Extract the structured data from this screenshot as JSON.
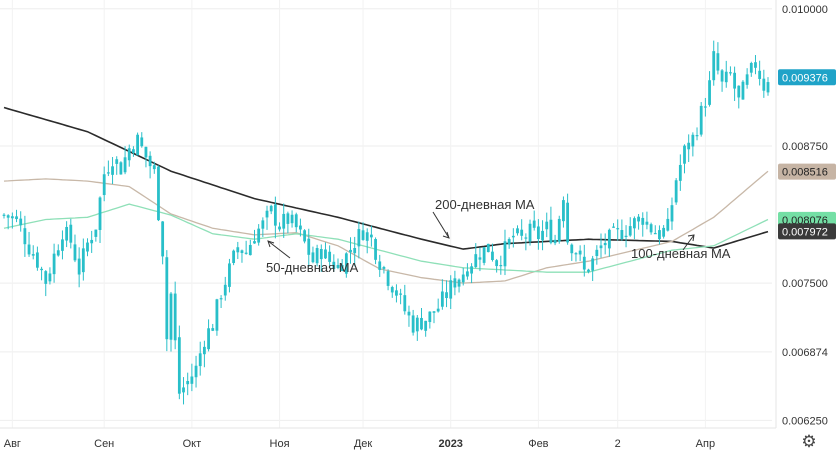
{
  "chart_data": {
    "type": "candlestick",
    "y_axis": {
      "position": "right",
      "ticks": [
        "0.010000",
        "0.008750",
        "0.007500",
        "0.006874",
        "0.006250"
      ],
      "ylim": [
        0.00618,
        0.01008
      ]
    },
    "x_axis": {
      "ticks": [
        {
          "label": "Авг",
          "idx": 2,
          "bold": false
        },
        {
          "label": "Сен",
          "idx": 24,
          "bold": false
        },
        {
          "label": "Окт",
          "idx": 45,
          "bold": false
        },
        {
          "label": "Ноя",
          "idx": 66,
          "bold": false
        },
        {
          "label": "Дек",
          "idx": 86,
          "bold": false
        },
        {
          "label": "2023",
          "idx": 107,
          "bold": true
        },
        {
          "label": "Фев",
          "idx": 128,
          "bold": false
        },
        {
          "label": "2",
          "idx": 147,
          "bold": false
        },
        {
          "label": "Апр",
          "idx": 168,
          "bold": false
        }
      ]
    },
    "price_points": [
      [
        0,
        0.00812
      ],
      [
        3,
        0.00808
      ],
      [
        6,
        0.00783
      ],
      [
        8,
        0.0077
      ],
      [
        10,
        0.00752
      ],
      [
        12,
        0.00775
      ],
      [
        14,
        0.00798
      ],
      [
        16,
        0.00788
      ],
      [
        18,
        0.00762
      ],
      [
        20,
        0.00786
      ],
      [
        22,
        0.00803
      ],
      [
        24,
        0.0085
      ],
      [
        26,
        0.00865
      ],
      [
        28,
        0.00855
      ],
      [
        30,
        0.00873
      ],
      [
        32,
        0.0088
      ],
      [
        34,
        0.00865
      ],
      [
        36,
        0.0085
      ],
      [
        38,
        0.0078
      ],
      [
        39,
        0.007
      ],
      [
        40,
        0.0074
      ],
      [
        42,
        0.0065
      ],
      [
        44,
        0.0066
      ],
      [
        46,
        0.00672
      ],
      [
        48,
        0.007
      ],
      [
        50,
        0.00712
      ],
      [
        52,
        0.00742
      ],
      [
        54,
        0.00762
      ],
      [
        56,
        0.00783
      ],
      [
        58,
        0.00778
      ],
      [
        60,
        0.00795
      ],
      [
        62,
        0.00803
      ],
      [
        64,
        0.00815
      ],
      [
        66,
        0.00803
      ],
      [
        68,
        0.00808
      ],
      [
        70,
        0.008
      ],
      [
        72,
        0.00786
      ],
      [
        74,
        0.0077
      ],
      [
        76,
        0.0078
      ],
      [
        78,
        0.0077
      ],
      [
        80,
        0.00765
      ],
      [
        82,
        0.00775
      ],
      [
        84,
        0.00788
      ],
      [
        86,
        0.00798
      ],
      [
        88,
        0.0079
      ],
      [
        90,
        0.0077
      ],
      [
        92,
        0.00755
      ],
      [
        94,
        0.00742
      ],
      [
        96,
        0.00725
      ],
      [
        98,
        0.00712
      ],
      [
        100,
        0.00715
      ],
      [
        102,
        0.0072
      ],
      [
        104,
        0.00728
      ],
      [
        106,
        0.0074
      ],
      [
        108,
        0.00752
      ],
      [
        110,
        0.0076
      ],
      [
        112,
        0.0077
      ],
      [
        114,
        0.00778
      ],
      [
        116,
        0.00782
      ],
      [
        118,
        0.0077
      ],
      [
        120,
        0.0078
      ],
      [
        122,
        0.00793
      ],
      [
        124,
        0.0079
      ],
      [
        126,
        0.00796
      ],
      [
        128,
        0.00793
      ],
      [
        130,
        0.008
      ],
      [
        132,
        0.0079
      ],
      [
        134,
        0.00832
      ],
      [
        135,
        0.0079
      ],
      [
        137,
        0.0078
      ],
      [
        139,
        0.0076
      ],
      [
        141,
        0.0077
      ],
      [
        143,
        0.00783
      ],
      [
        145,
        0.0079
      ],
      [
        147,
        0.00795
      ],
      [
        149,
        0.008
      ],
      [
        151,
        0.00805
      ],
      [
        153,
        0.0081
      ],
      [
        155,
        0.008
      ],
      [
        157,
        0.00795
      ],
      [
        159,
        0.008
      ],
      [
        161,
        0.00845
      ],
      [
        163,
        0.0087
      ],
      [
        165,
        0.00882
      ],
      [
        167,
        0.00905
      ],
      [
        169,
        0.0093
      ],
      [
        170,
        0.00955
      ],
      [
        172,
        0.0093
      ],
      [
        174,
        0.0094
      ],
      [
        176,
        0.00915
      ],
      [
        178,
        0.00935
      ],
      [
        180,
        0.0095
      ],
      [
        182,
        0.0093
      ],
      [
        183,
        0.00938
      ]
    ],
    "series": [
      {
        "name": "200-дневная MA",
        "color": "#2b2b2b",
        "points": [
          [
            0,
            0.0091
          ],
          [
            20,
            0.00888
          ],
          [
            40,
            0.00852
          ],
          [
            60,
            0.00827
          ],
          [
            80,
            0.0081
          ],
          [
            100,
            0.0079
          ],
          [
            110,
            0.00781
          ],
          [
            120,
            0.00786
          ],
          [
            140,
            0.0079
          ],
          [
            160,
            0.00788
          ],
          [
            170,
            0.00782
          ],
          [
            183,
            0.00797
          ]
        ]
      },
      {
        "name": "100-дневная MA",
        "color": "#c8b8a8",
        "points": [
          [
            0,
            0.00843
          ],
          [
            10,
            0.00845
          ],
          [
            20,
            0.00843
          ],
          [
            30,
            0.00838
          ],
          [
            40,
            0.00813
          ],
          [
            50,
            0.008
          ],
          [
            60,
            0.00794
          ],
          [
            70,
            0.00796
          ],
          [
            80,
            0.00784
          ],
          [
            90,
            0.00763
          ],
          [
            100,
            0.00755
          ],
          [
            110,
            0.0075
          ],
          [
            120,
            0.00752
          ],
          [
            130,
            0.00764
          ],
          [
            140,
            0.0077
          ],
          [
            150,
            0.00779
          ],
          [
            160,
            0.00788
          ],
          [
            170,
            0.0081
          ],
          [
            183,
            0.00852
          ]
        ]
      },
      {
        "name": "50-дневная MA",
        "color": "#8fe0b8",
        "points": [
          [
            0,
            0.008
          ],
          [
            10,
            0.00808
          ],
          [
            20,
            0.0081
          ],
          [
            30,
            0.00822
          ],
          [
            40,
            0.00812
          ],
          [
            50,
            0.00795
          ],
          [
            60,
            0.0079
          ],
          [
            70,
            0.00795
          ],
          [
            80,
            0.0079
          ],
          [
            90,
            0.0078
          ],
          [
            100,
            0.0077
          ],
          [
            110,
            0.00764
          ],
          [
            120,
            0.00762
          ],
          [
            130,
            0.0076
          ],
          [
            140,
            0.0076
          ],
          [
            150,
            0.0077
          ],
          [
            160,
            0.0078
          ],
          [
            170,
            0.00784
          ],
          [
            183,
            0.00808
          ]
        ]
      }
    ],
    "annotations": {
      "ma200": "200-дневная MA",
      "ma100": "100-дневная MA",
      "ma50": "50-дневная MA"
    },
    "price_badges": [
      {
        "label": "0.009376",
        "value": 0.009376,
        "bg": "#1fa3c8",
        "fg": "#ffffff"
      },
      {
        "label": "0.008516",
        "value": 0.008516,
        "bg": "#c6b4a4",
        "fg": "#222222"
      },
      {
        "label": "0.008076",
        "value": 0.008076,
        "bg": "#74dfa5",
        "fg": "#222222"
      },
      {
        "label": "0.007972",
        "value": 0.007972,
        "bg": "#3a3a3a",
        "fg": "#ffffff"
      }
    ],
    "candle_color": "#28bfc9",
    "grid": true
  },
  "toolbar": {
    "settings_icon": "gear-icon",
    "settings_glyph": "⚙"
  }
}
